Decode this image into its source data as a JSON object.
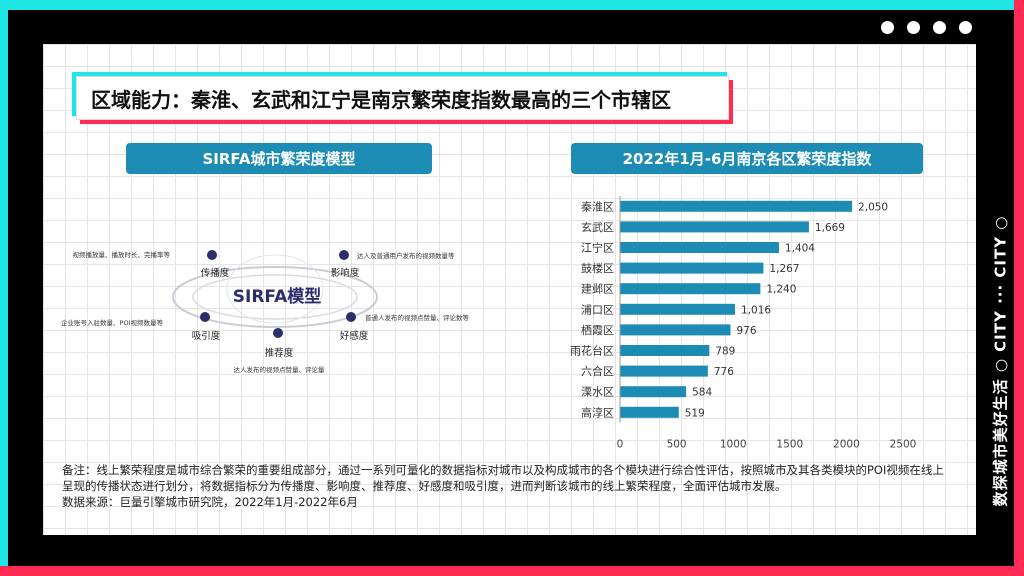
{
  "page": {
    "title": "区域能力：秦淮、玄武和江宁是南京繁荣度指数最高的三个市辖区",
    "side_text": "数探城市美好生活 ○ CITY ··· CITY ○",
    "left_header": "SIRFA城市繁荣度模型",
    "right_header": "2022年1月-6月南京各区繁荣度指数",
    "note": "备注：线上繁荣程度是城市综合繁荣的重要组成部分，通过一系列可量化的数据指标对城市以及构成城市的各个模块进行综合性评估，按照城市及其各类模块的POI视频在线上呈现的传播状态进行划分，将数据指标分为传播度、影响度、推荐度、好感度和吸引度，进而判断该城市的线上繁荣程度，全面评估城市发展。",
    "source": "数据来源：巨量引擎城市研究院，2022年1月-2022年6月",
    "colors": {
      "cyan": "#1ee6e6",
      "pink": "#ff2b55",
      "bar": "#1c8cb4"
    }
  },
  "model": {
    "center_label": "SIRFA模型",
    "nodes": [
      {
        "name": "传播度",
        "desc": "视频播放量、播放时长、完播率等"
      },
      {
        "name": "影响度",
        "desc": "达人及普通用户发布的视频数量等"
      },
      {
        "name": "吸引度",
        "desc": "企业账号入驻数量、POI视频数量等"
      },
      {
        "name": "好感度",
        "desc": "普通人发布的视频点赞量、评论数等"
      },
      {
        "name": "推荐度",
        "desc": "达人发布的视频点赞量、评论量"
      }
    ]
  },
  "chart_data": {
    "type": "bar",
    "orientation": "horizontal",
    "title": "2022年1月-6月南京各区繁荣度指数",
    "categories": [
      "秦淮区",
      "玄武区",
      "江宁区",
      "鼓楼区",
      "建邺区",
      "浦口区",
      "栖霞区",
      "雨花台区",
      "六合区",
      "溧水区",
      "高淳区"
    ],
    "values": [
      2050,
      1669,
      1404,
      1267,
      1240,
      1016,
      976,
      789,
      776,
      584,
      519
    ],
    "value_labels": [
      "2,050",
      "1,669",
      "1,404",
      "1,267",
      "1,240",
      "1,016",
      "976",
      "789",
      "776",
      "584",
      "519"
    ],
    "xlim": [
      0,
      2500
    ],
    "xticks": [
      "0",
      "500",
      "1000",
      "1500",
      "2000",
      "2500"
    ],
    "xlabel": "",
    "ylabel": "",
    "grid": false
  }
}
